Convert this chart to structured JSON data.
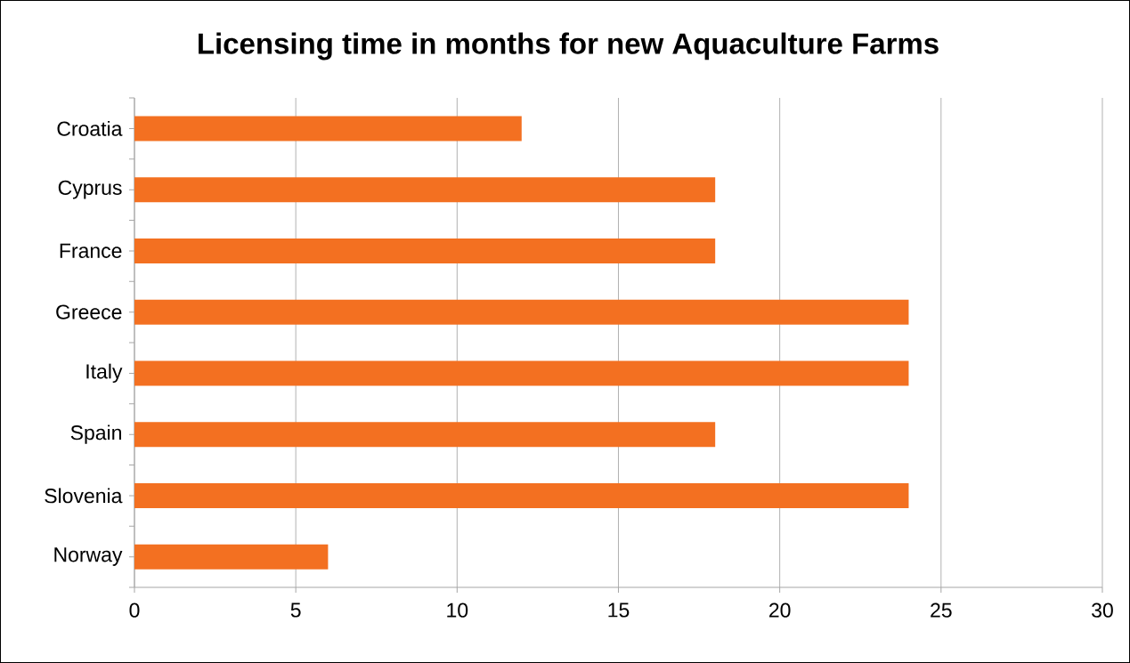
{
  "chart_data": {
    "type": "bar",
    "orientation": "horizontal",
    "title": "Licensing time in months for new Aquaculture Farms",
    "categories": [
      "Croatia",
      "Cyprus",
      "France",
      "Greece",
      "Italy",
      "Spain",
      "Slovenia",
      "Norway"
    ],
    "values": [
      12,
      18,
      18,
      24,
      24,
      18,
      24,
      6
    ],
    "color": "#f37021",
    "xlim": [
      0,
      30
    ],
    "xticks": [
      0,
      5,
      10,
      15,
      20,
      25,
      30
    ],
    "grid": "x"
  }
}
